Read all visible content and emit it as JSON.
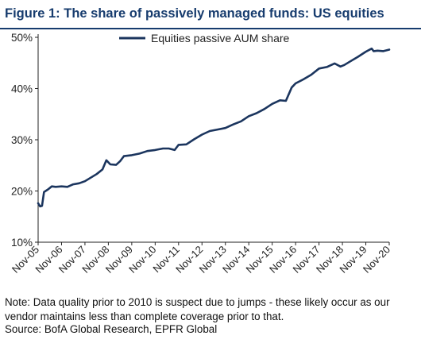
{
  "title": "Figure 1: The share of passively managed funds: US equities",
  "note": "Note: Data quality prior to 2010 is suspect due to jumps - these likely occur as our vendor maintains less than complete coverage prior to that.",
  "source": "Source: BofA Global Research, EPFR Global",
  "colors": {
    "line": "#1b355e",
    "title": "#173c6e"
  },
  "chart_data": {
    "type": "line",
    "title": "Figure 1: The share of passively managed funds: US equities",
    "xlabel": "",
    "ylabel": "",
    "ylim": [
      10,
      50
    ],
    "xlim": [
      "2005-11",
      "2020-11"
    ],
    "yticks": [
      10,
      20,
      30,
      40,
      50
    ],
    "ytick_labels": [
      "10%",
      "20%",
      "30%",
      "40%",
      "50%"
    ],
    "xtick_labels": [
      "Nov-05",
      "Nov-06",
      "Nov-07",
      "Nov-08",
      "Nov-09",
      "Nov-10",
      "Nov-11",
      "Nov-12",
      "Nov-13",
      "Nov-14",
      "Nov-15",
      "Nov-16",
      "Nov-17",
      "Nov-18",
      "Nov-19",
      "Nov-20"
    ],
    "grid": false,
    "legend_position": "top-center",
    "series": [
      {
        "name": "Equities passive AUM share",
        "points": [
          [
            "2005-11",
            17.6
          ],
          [
            "2005-12",
            17.0
          ],
          [
            "2006-01",
            17.1
          ],
          [
            "2006-02",
            19.8
          ],
          [
            "2006-04",
            20.3
          ],
          [
            "2006-06",
            20.9
          ],
          [
            "2006-08",
            20.8
          ],
          [
            "2006-11",
            20.9
          ],
          [
            "2007-02",
            20.8
          ],
          [
            "2007-05",
            21.3
          ],
          [
            "2007-08",
            21.5
          ],
          [
            "2007-11",
            21.9
          ],
          [
            "2008-02",
            22.6
          ],
          [
            "2008-05",
            23.3
          ],
          [
            "2008-08",
            24.2
          ],
          [
            "2008-10",
            26.0
          ],
          [
            "2008-12",
            25.2
          ],
          [
            "2009-03",
            25.1
          ],
          [
            "2009-05",
            25.8
          ],
          [
            "2009-07",
            26.8
          ],
          [
            "2009-11",
            27.0
          ],
          [
            "2010-03",
            27.3
          ],
          [
            "2010-07",
            27.8
          ],
          [
            "2010-11",
            28.0
          ],
          [
            "2011-03",
            28.3
          ],
          [
            "2011-06",
            28.3
          ],
          [
            "2011-09",
            28.0
          ],
          [
            "2011-11",
            29.0
          ],
          [
            "2012-03",
            29.1
          ],
          [
            "2012-07",
            30.1
          ],
          [
            "2012-11",
            31.0
          ],
          [
            "2013-03",
            31.7
          ],
          [
            "2013-07",
            32.0
          ],
          [
            "2013-11",
            32.3
          ],
          [
            "2014-03",
            33.0
          ],
          [
            "2014-07",
            33.6
          ],
          [
            "2014-11",
            34.6
          ],
          [
            "2015-03",
            35.2
          ],
          [
            "2015-07",
            36.0
          ],
          [
            "2015-11",
            37.0
          ],
          [
            "2016-03",
            37.7
          ],
          [
            "2016-06",
            37.6
          ],
          [
            "2016-09",
            40.2
          ],
          [
            "2016-11",
            41.0
          ],
          [
            "2017-03",
            41.8
          ],
          [
            "2017-07",
            42.7
          ],
          [
            "2017-11",
            43.9
          ],
          [
            "2018-03",
            44.2
          ],
          [
            "2018-07",
            44.9
          ],
          [
            "2018-10",
            44.3
          ],
          [
            "2018-12",
            44.6
          ],
          [
            "2019-03",
            45.3
          ],
          [
            "2019-07",
            46.2
          ],
          [
            "2019-11",
            47.2
          ],
          [
            "2020-02",
            47.8
          ],
          [
            "2020-03",
            47.3
          ],
          [
            "2020-05",
            47.4
          ],
          [
            "2020-08",
            47.3
          ],
          [
            "2020-11",
            47.6
          ]
        ]
      }
    ]
  }
}
